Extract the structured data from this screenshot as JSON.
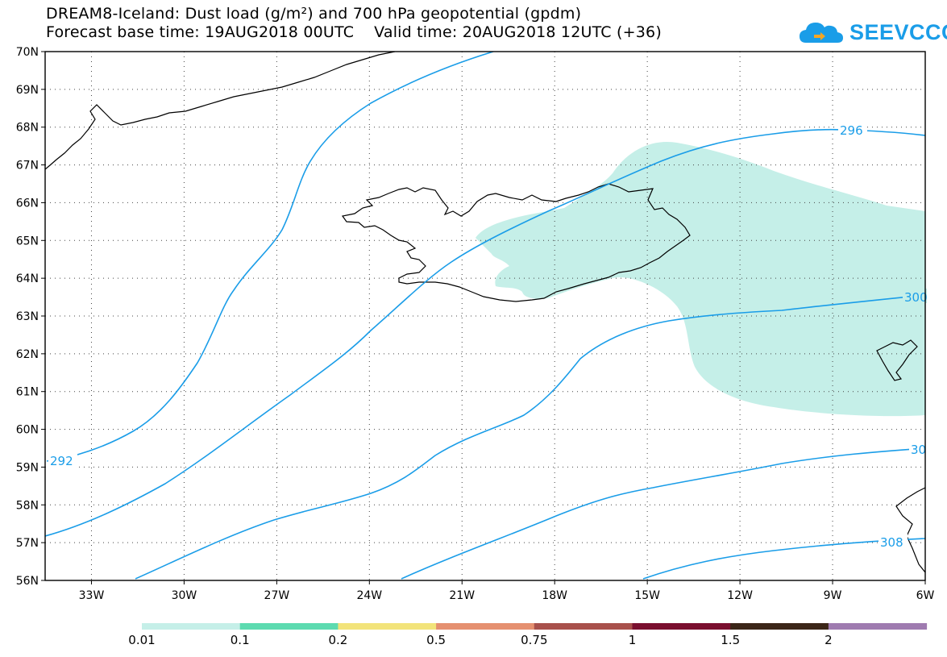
{
  "title": {
    "line1": "DREAM8-Iceland: Dust load (g/m²) and 700 hPa geopotential (gpdm)",
    "line2": "Forecast base time: 19AUG2018 00UTC    Valid time: 20AUG2018 12UTC (+36)"
  },
  "logo": {
    "text": "SEEVCCC",
    "icon": "cloud-logo-icon",
    "color": "#1a9de8"
  },
  "map": {
    "projection": "lat-lon",
    "lon_range": [
      -34.5,
      -6
    ],
    "lat_range": [
      56,
      70
    ],
    "lat_labels": [
      "56N",
      "57N",
      "58N",
      "59N",
      "60N",
      "61N",
      "62N",
      "63N",
      "64N",
      "65N",
      "66N",
      "67N",
      "68N",
      "69N",
      "70N"
    ],
    "lon_labels": [
      "33W",
      "30W",
      "27W",
      "24W",
      "21W",
      "18W",
      "15W",
      "12W",
      "9W",
      "6W"
    ],
    "grid": "dotted"
  },
  "geopotential": {
    "color": "#1a9de8",
    "labels": [
      "292",
      "296",
      "300",
      "30",
      "308"
    ]
  },
  "dust": {
    "shaded_class": "0.01-0.1",
    "color": "#c5efe8"
  },
  "colorbar": {
    "colors": [
      "#c5efe8",
      "#5ddbb0",
      "#f2e37a",
      "#e59070",
      "#a8504b",
      "#7a0f2f",
      "#3b2618",
      "#9f7bb0"
    ],
    "labels": [
      "0.01",
      "0.1",
      "0.2",
      "0.5",
      "0.75",
      "1",
      "1.5",
      "2"
    ]
  }
}
